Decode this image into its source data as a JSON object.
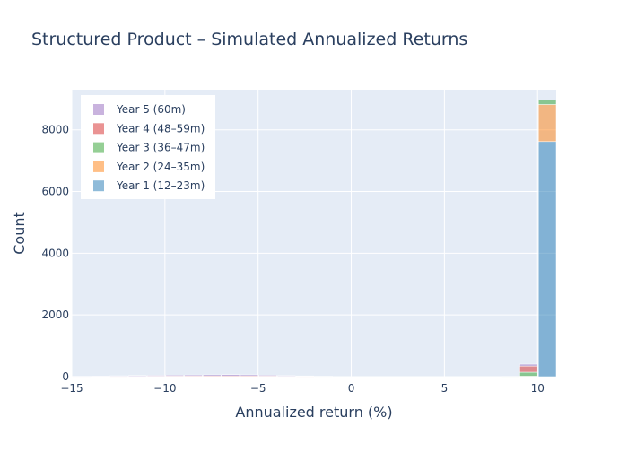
{
  "chart_data": {
    "type": "bar",
    "barmode": "stack",
    "title": "Structured Product – Simulated Annualized Returns",
    "xlabel": "Annualized return (%)",
    "ylabel": "Count",
    "xlim": [
      -15,
      11
    ],
    "ylim": [
      0,
      9300
    ],
    "x_ticks": [
      -15,
      -10,
      -5,
      0,
      5,
      10
    ],
    "x_tick_labels": [
      "−15",
      "−10",
      "−5",
      "0",
      "5",
      "10"
    ],
    "y_ticks": [
      0,
      2000,
      4000,
      6000,
      8000
    ],
    "y_tick_labels": [
      "0",
      "2000",
      "4000",
      "6000",
      "8000"
    ],
    "grid": true,
    "legend_position": "top-left",
    "bins": [
      [
        -15,
        -14
      ],
      [
        -14,
        -13
      ],
      [
        -13,
        -12
      ],
      [
        -12,
        -11
      ],
      [
        -11,
        -10
      ],
      [
        -10,
        -9
      ],
      [
        -9,
        -8
      ],
      [
        -8,
        -7
      ],
      [
        -7,
        -6
      ],
      [
        -6,
        -5
      ],
      [
        -5,
        -4
      ],
      [
        -4,
        -3
      ],
      [
        -3,
        -2
      ],
      [
        -2,
        -1
      ],
      [
        -1,
        0
      ],
      [
        8,
        9
      ],
      [
        9,
        10
      ],
      [
        10,
        11
      ]
    ],
    "series": [
      {
        "name": "Year 1 (12–23m)",
        "color": "#1f77b4",
        "values": [
          0,
          0,
          0,
          0,
          0,
          0,
          0,
          0,
          0,
          0,
          0,
          0,
          0,
          0,
          0,
          0,
          0,
          7620
        ]
      },
      {
        "name": "Year 2 (24–35m)",
        "color": "#ff7f0e",
        "values": [
          0,
          0,
          0,
          0,
          0,
          0,
          0,
          0,
          0,
          0,
          0,
          0,
          0,
          0,
          0,
          0,
          15,
          1200
        ]
      },
      {
        "name": "Year 3 (36–47m)",
        "color": "#2ca02c",
        "values": [
          0,
          0,
          0,
          0,
          0,
          0,
          0,
          0,
          0,
          0,
          0,
          0,
          0,
          0,
          0,
          10,
          130,
          150
        ]
      },
      {
        "name": "Year 4 (48–59m)",
        "color": "#d62728",
        "values": [
          4,
          6,
          10,
          14,
          16,
          18,
          20,
          22,
          24,
          22,
          18,
          14,
          10,
          6,
          3,
          0,
          200,
          0
        ]
      },
      {
        "name": "Year 5 (60m)",
        "color": "#9467bd",
        "values": [
          8,
          12,
          18,
          22,
          26,
          30,
          34,
          38,
          42,
          36,
          28,
          20,
          14,
          8,
          4,
          0,
          60,
          0
        ]
      }
    ]
  }
}
